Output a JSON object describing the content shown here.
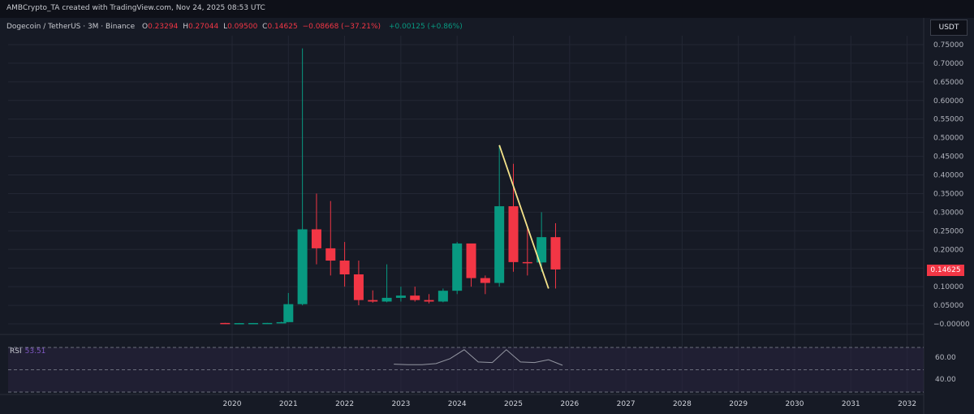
{
  "header": {
    "credit": "AMBCrypto_TA created with TradingView.com, Nov 24, 2025 08:53 UTC"
  },
  "legend": {
    "symbol": "Dogecoin / TetherUS · 3M · Binance",
    "o_key": "O",
    "o_val": "0.23294",
    "h_key": "H",
    "h_val": "0.27044",
    "l_key": "L",
    "l_val": "0.09500",
    "c_key": "C",
    "c_val": "0.14625",
    "change": "−0.08668 (−37.21%)",
    "extra": "+0.00125 (+0.86%)"
  },
  "currency_button": "USDT",
  "last_price_tag": "0.14625",
  "rsi": {
    "label": "RSI",
    "value": "53.51",
    "ticks": [
      "60.00",
      "40.00"
    ],
    "line_values": [
      55,
      54.5,
      54.5,
      55.5,
      60,
      68,
      57,
      56.5,
      68,
      57,
      56.5,
      59,
      54
    ]
  },
  "colors": {
    "background": "#161a25",
    "bullish": "#089981",
    "bearish": "#f23645",
    "trendline": "#f5e38a",
    "rsi_band": "#2a2540",
    "rsi_line": "#b2b5be"
  },
  "chart_data": {
    "type": "candlestick",
    "title": "Dogecoin / TetherUS · 3M · Binance",
    "y_axis_ticks": [
      "0.75000",
      "0.70000",
      "0.65000",
      "0.60000",
      "0.55000",
      "0.50000",
      "0.45000",
      "0.40000",
      "0.35000",
      "0.30000",
      "0.25000",
      "0.20000",
      "0.15000",
      "0.10000",
      "0.05000",
      "−0.00000"
    ],
    "y_tick_values": [
      0.75,
      0.7,
      0.65,
      0.6,
      0.55,
      0.5,
      0.45,
      0.4,
      0.35,
      0.3,
      0.25,
      0.2,
      0.15,
      0.1,
      0.05,
      0.0
    ],
    "x_axis_labels": [
      "2020",
      "2021",
      "2022",
      "2023",
      "2024",
      "2025",
      "2026",
      "2027",
      "2028",
      "2029",
      "2030",
      "2031",
      "2032"
    ],
    "ylim": [
      0,
      0.75
    ],
    "candles": [
      {
        "t": 2019.875,
        "o": 0.0025,
        "h": 0.0028,
        "l": 0.0018,
        "c": 0.002
      },
      {
        "t": 2020.125,
        "o": 0.002,
        "h": 0.0025,
        "l": 0.0016,
        "c": 0.0021
      },
      {
        "t": 2020.375,
        "o": 0.0021,
        "h": 0.0024,
        "l": 0.0019,
        "c": 0.0023
      },
      {
        "t": 2020.625,
        "o": 0.0023,
        "h": 0.0027,
        "l": 0.0021,
        "c": 0.0025
      },
      {
        "t": 2020.875,
        "o": 0.0025,
        "h": 0.006,
        "l": 0.0022,
        "c": 0.0046
      },
      {
        "t": 2021.0,
        "o": 0.0047,
        "h": 0.083,
        "l": 0.0047,
        "c": 0.053
      },
      {
        "t": 2021.25,
        "o": 0.053,
        "h": 0.74,
        "l": 0.05,
        "c": 0.254
      },
      {
        "t": 2021.5,
        "o": 0.254,
        "h": 0.35,
        "l": 0.16,
        "c": 0.203
      },
      {
        "t": 2021.75,
        "o": 0.203,
        "h": 0.33,
        "l": 0.13,
        "c": 0.17
      },
      {
        "t": 2022.0,
        "o": 0.17,
        "h": 0.22,
        "l": 0.1,
        "c": 0.133
      },
      {
        "t": 2022.25,
        "o": 0.133,
        "h": 0.17,
        "l": 0.05,
        "c": 0.064
      },
      {
        "t": 2022.5,
        "o": 0.064,
        "h": 0.09,
        "l": 0.057,
        "c": 0.06
      },
      {
        "t": 2022.75,
        "o": 0.06,
        "h": 0.16,
        "l": 0.058,
        "c": 0.07
      },
      {
        "t": 2023.0,
        "o": 0.07,
        "h": 0.1,
        "l": 0.06,
        "c": 0.076
      },
      {
        "t": 2023.25,
        "o": 0.076,
        "h": 0.1,
        "l": 0.06,
        "c": 0.064
      },
      {
        "t": 2023.5,
        "o": 0.064,
        "h": 0.08,
        "l": 0.055,
        "c": 0.06
      },
      {
        "t": 2023.75,
        "o": 0.06,
        "h": 0.095,
        "l": 0.058,
        "c": 0.089
      },
      {
        "t": 2024.0,
        "o": 0.089,
        "h": 0.22,
        "l": 0.08,
        "c": 0.216
      },
      {
        "t": 2024.25,
        "o": 0.216,
        "h": 0.21,
        "l": 0.1,
        "c": 0.123
      },
      {
        "t": 2024.5,
        "o": 0.123,
        "h": 0.13,
        "l": 0.08,
        "c": 0.11
      },
      {
        "t": 2024.75,
        "o": 0.11,
        "h": 0.48,
        "l": 0.1,
        "c": 0.316
      },
      {
        "t": 2025.0,
        "o": 0.316,
        "h": 0.43,
        "l": 0.14,
        "c": 0.166
      },
      {
        "t": 2025.25,
        "o": 0.166,
        "h": 0.26,
        "l": 0.13,
        "c": 0.165
      },
      {
        "t": 2025.5,
        "o": 0.165,
        "h": 0.3,
        "l": 0.14,
        "c": 0.233
      },
      {
        "t": 2025.75,
        "o": 0.23294,
        "h": 0.27044,
        "l": 0.095,
        "c": 0.14625
      }
    ],
    "trendline": {
      "from": {
        "t": 2024.75,
        "v": 0.48
      },
      "to": {
        "t": 2025.625,
        "v": 0.095
      }
    },
    "last_price": 0.14625
  }
}
